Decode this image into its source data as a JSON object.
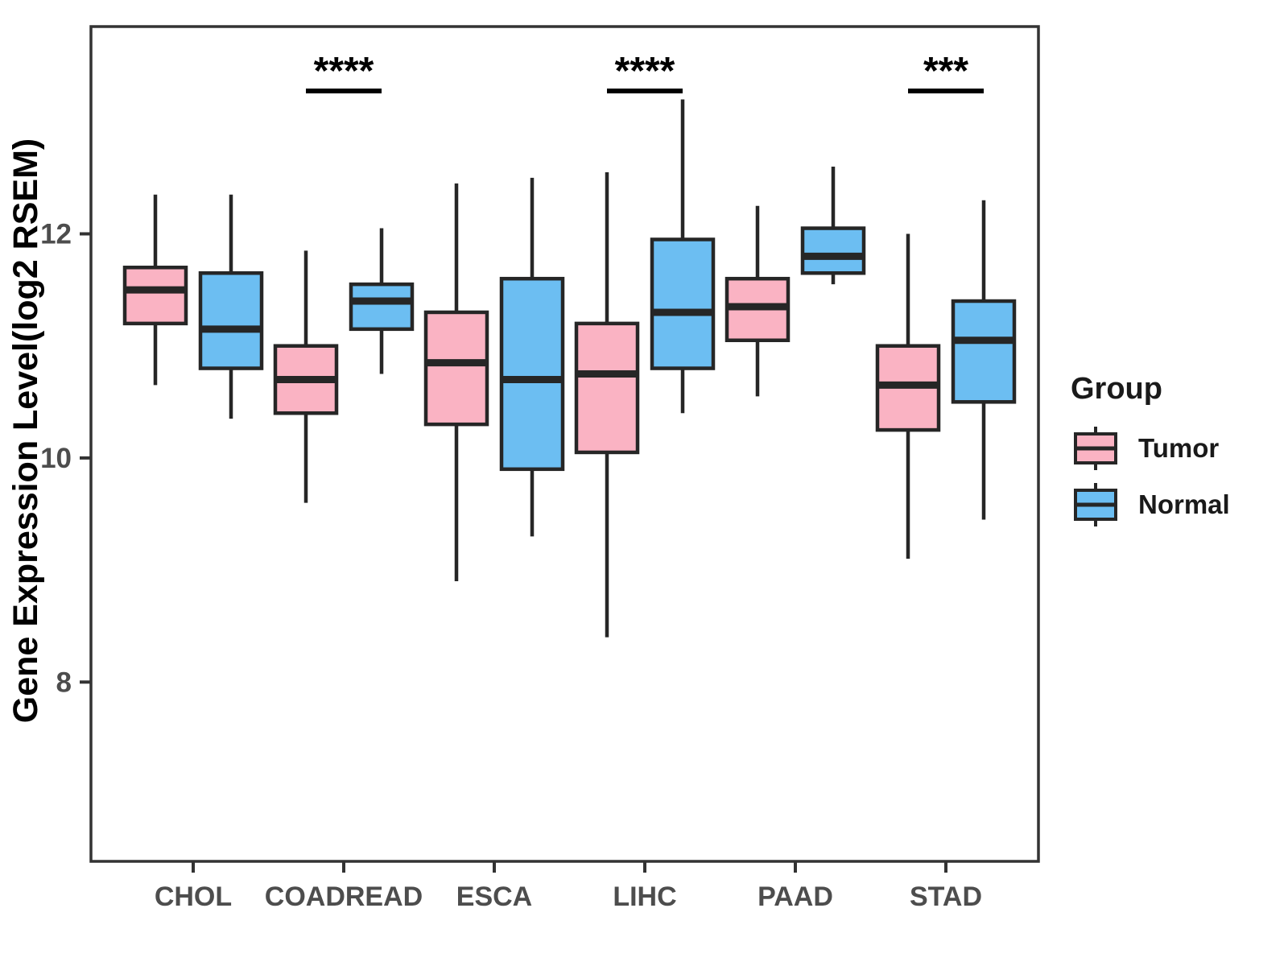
{
  "chart_data": {
    "type": "boxplot",
    "title": "",
    "xlabel": "",
    "ylabel": "Gene Expression Level(log2 RSEM)",
    "categories": [
      "CHOL",
      "COADREAD",
      "ESCA",
      "LIHC",
      "PAAD",
      "STAD"
    ],
    "groups": [
      {
        "name": "Tumor",
        "color": "#FAB3C3"
      },
      {
        "name": "Normal",
        "color": "#6CBEF2"
      }
    ],
    "yticks": [
      8,
      10,
      12
    ],
    "ylim": [
      6.4,
      13.85
    ],
    "grid": false,
    "legend": {
      "title": "Group",
      "position": "right",
      "entries": [
        "Tumor",
        "Normal"
      ]
    },
    "series": [
      {
        "category": "CHOL",
        "group": "Tumor",
        "min": 10.65,
        "q1": 11.2,
        "median": 11.5,
        "q3": 11.7,
        "max": 12.35
      },
      {
        "category": "CHOL",
        "group": "Normal",
        "min": 10.35,
        "q1": 10.8,
        "median": 11.15,
        "q3": 11.65,
        "max": 12.35
      },
      {
        "category": "COADREAD",
        "group": "Tumor",
        "min": 9.6,
        "q1": 10.4,
        "median": 10.7,
        "q3": 11.0,
        "max": 11.85
      },
      {
        "category": "COADREAD",
        "group": "Normal",
        "min": 10.75,
        "q1": 11.15,
        "median": 11.4,
        "q3": 11.55,
        "max": 12.05
      },
      {
        "category": "ESCA",
        "group": "Tumor",
        "min": 8.9,
        "q1": 10.3,
        "median": 10.85,
        "q3": 11.3,
        "max": 12.45
      },
      {
        "category": "ESCA",
        "group": "Normal",
        "min": 9.3,
        "q1": 9.9,
        "median": 10.7,
        "q3": 11.6,
        "max": 12.5
      },
      {
        "category": "LIHC",
        "group": "Tumor",
        "min": 8.4,
        "q1": 10.05,
        "median": 10.75,
        "q3": 11.2,
        "max": 12.55
      },
      {
        "category": "LIHC",
        "group": "Normal",
        "min": 10.4,
        "q1": 10.8,
        "median": 11.3,
        "q3": 11.95,
        "max": 13.2
      },
      {
        "category": "PAAD",
        "group": "Tumor",
        "min": 10.55,
        "q1": 11.05,
        "median": 11.35,
        "q3": 11.6,
        "max": 12.25
      },
      {
        "category": "PAAD",
        "group": "Normal",
        "min": 11.55,
        "q1": 11.65,
        "median": 11.8,
        "q3": 12.05,
        "max": 12.6
      },
      {
        "category": "STAD",
        "group": "Tumor",
        "min": 9.1,
        "q1": 10.25,
        "median": 10.65,
        "q3": 11.0,
        "max": 12.0
      },
      {
        "category": "STAD",
        "group": "Normal",
        "min": 9.45,
        "q1": 10.5,
        "median": 11.05,
        "q3": 11.4,
        "max": 12.3
      }
    ],
    "significance": [
      {
        "category": "COADREAD",
        "label": "****"
      },
      {
        "category": "LIHC",
        "label": "****"
      },
      {
        "category": "STAD",
        "label": "***"
      }
    ],
    "colors": {
      "box_outline": "#262626",
      "panel_border": "#333333",
      "axis_text": "#4d4d4d",
      "axis_title": "#000000"
    }
  }
}
